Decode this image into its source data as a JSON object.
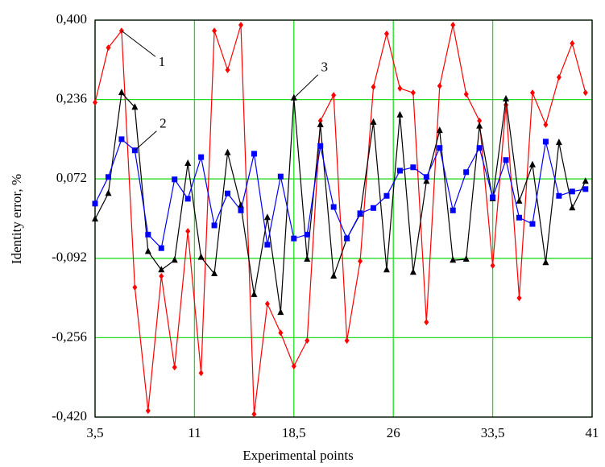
{
  "chart_data": {
    "type": "line",
    "x_label": "Experimental points",
    "y_label": "Identity error, %",
    "x": [
      3.5,
      4.5,
      5.5,
      6.5,
      7.5,
      8.5,
      9.5,
      10.5,
      11.5,
      12.5,
      13.5,
      14.5,
      15.5,
      16.5,
      17.5,
      18.5,
      19.5,
      20.5,
      21.5,
      22.5,
      23.5,
      24.5,
      25.5,
      26.5,
      27.5,
      28.5,
      29.5,
      30.5,
      31.5,
      32.5,
      33.5,
      34.5,
      35.5,
      36.5,
      37.5,
      38.5,
      39.5,
      40.5
    ],
    "series": [
      {
        "name": "1",
        "color": "#ff0000",
        "marker": "diamond",
        "values": [
          0.23,
          0.343,
          0.378,
          -0.152,
          -0.407,
          -0.129,
          -0.317,
          -0.036,
          -0.329,
          0.378,
          0.297,
          0.39,
          -0.414,
          -0.186,
          -0.246,
          -0.315,
          -0.262,
          0.192,
          0.245,
          -0.262,
          -0.098,
          0.262,
          0.372,
          0.259,
          0.25,
          -0.224,
          0.264,
          0.39,
          0.247,
          0.192,
          -0.107,
          0.225,
          -0.174,
          0.25,
          0.184,
          0.282,
          0.352,
          0.25
        ]
      },
      {
        "name": "2",
        "color": "#0000ff",
        "marker": "square",
        "values": [
          0.021,
          0.076,
          0.154,
          0.131,
          -0.043,
          -0.071,
          0.071,
          0.031,
          0.117,
          -0.024,
          0.042,
          0.007,
          0.124,
          -0.064,
          0.077,
          -0.051,
          -0.043,
          0.14,
          0.014,
          -0.051,
          0.001,
          0.012,
          0.037,
          0.089,
          0.096,
          0.076,
          0.136,
          0.007,
          0.086,
          0.136,
          0.034,
          0.111,
          -0.008,
          -0.021,
          0.149,
          0.037,
          0.046,
          0.051
        ]
      },
      {
        "name": "3",
        "color": "#000000",
        "marker": "triangle",
        "values": [
          -0.011,
          0.042,
          0.25,
          0.22,
          -0.078,
          -0.116,
          -0.096,
          0.104,
          -0.09,
          -0.124,
          0.126,
          0.017,
          -0.167,
          -0.008,
          -0.204,
          0.239,
          -0.094,
          0.184,
          -0.129,
          -0.051,
          -0.001,
          0.189,
          -0.116,
          0.204,
          -0.121,
          0.067,
          0.172,
          -0.096,
          -0.094,
          0.181,
          0.031,
          0.237,
          0.026,
          0.101,
          -0.101,
          0.147,
          0.012,
          0.067
        ]
      }
    ],
    "xlim": [
      3.5,
      41
    ],
    "xticks": [
      {
        "value": 3.5,
        "label": "3,5"
      },
      11,
      {
        "value": 18.5,
        "label": "18,5"
      },
      26,
      {
        "value": 33.5,
        "label": "33,5"
      },
      41
    ],
    "ylim": [
      -0.42,
      0.4
    ],
    "yticks": [
      {
        "value": -0.42,
        "label": "-0,420"
      },
      {
        "value": -0.256,
        "label": "-0,256"
      },
      {
        "value": -0.092,
        "label": "-0,092"
      },
      {
        "value": 0.072,
        "label": "0,072"
      },
      {
        "value": 0.236,
        "label": "0,236"
      },
      {
        "value": 0.4,
        "label": "0,400"
      }
    ],
    "grid": true
  }
}
